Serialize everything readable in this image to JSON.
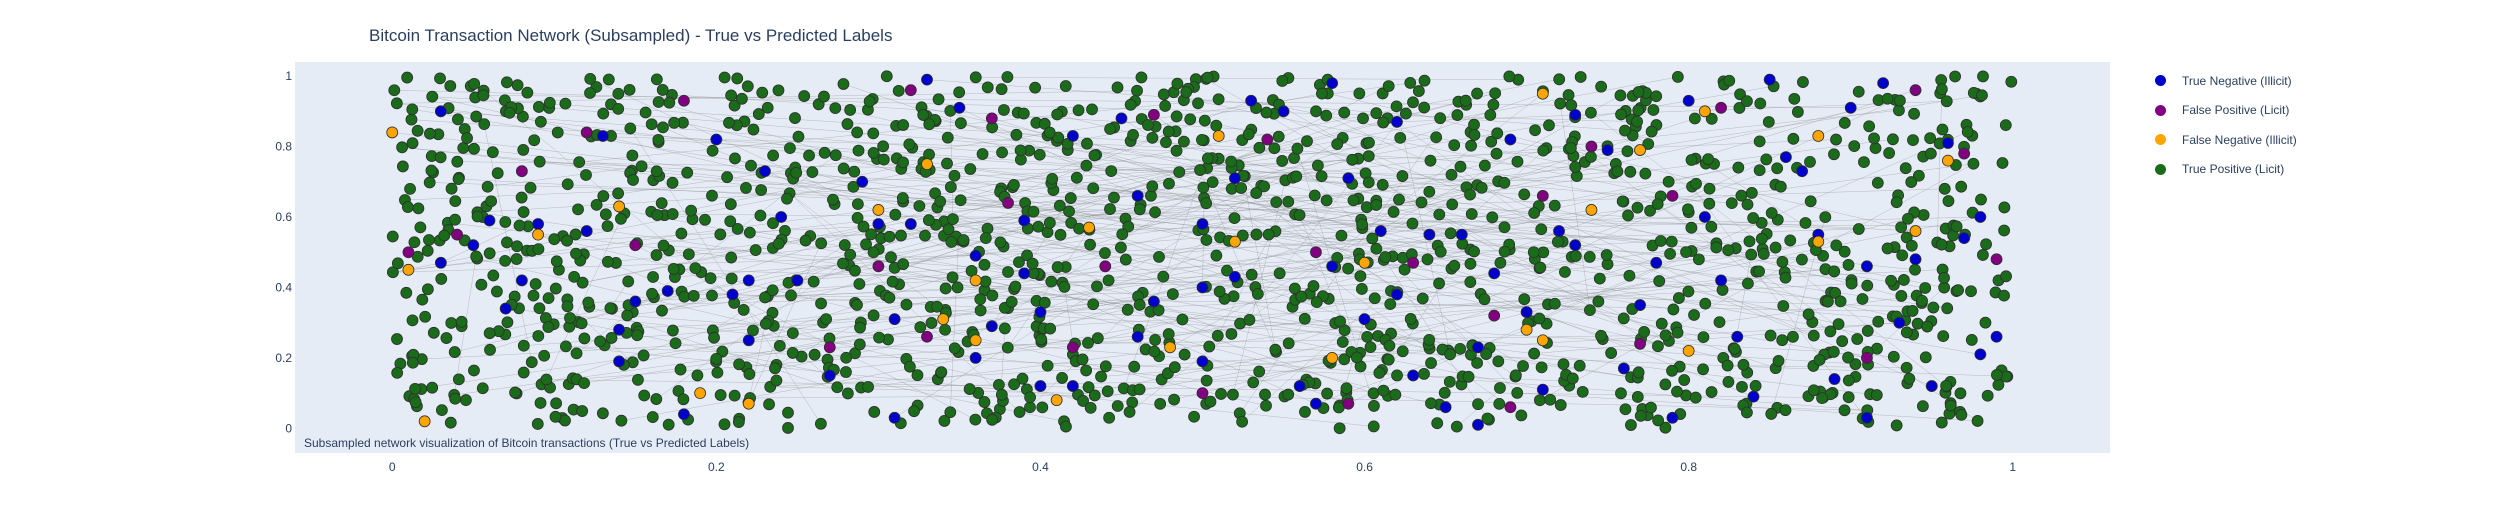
{
  "chart_data": {
    "type": "scatter",
    "title": "Bitcoin Transaction Network (Subsampled) - True vs Predicted Labels",
    "annotation": "Subsampled network visualization of Bitcoin transactions (True vs Predicted Labels)",
    "xlabel": "",
    "ylabel": "",
    "xlim": [
      -0.06,
      1.06
    ],
    "ylim": [
      -0.07,
      1.04
    ],
    "x_ticks": [
      0,
      0.2,
      0.4,
      0.6,
      0.8,
      1
    ],
    "x_tick_labels": [
      "0",
      "0.2",
      "0.4",
      "0.6",
      "0.8",
      "1"
    ],
    "y_ticks": [
      0,
      0.2,
      0.4,
      0.6,
      0.8,
      1
    ],
    "y_tick_labels": [
      "0",
      "0.2",
      "0.4",
      "0.6",
      "0.8",
      "1"
    ],
    "grid": false,
    "legend_position": "top-right",
    "colors": {
      "plot_background": "#e5ecf6",
      "edges": "#888888",
      "marker_outline": "#2f2f2f"
    },
    "series": [
      {
        "name": "True Negative (Illicit)",
        "color": "#0000cd",
        "points": [
          [
            0.03,
            0.47
          ],
          [
            0.03,
            0.9
          ],
          [
            0.06,
            0.59
          ],
          [
            0.05,
            0.52
          ],
          [
            0.07,
            0.34
          ],
          [
            0.08,
            0.42
          ],
          [
            0.09,
            0.58
          ],
          [
            0.12,
            0.56
          ],
          [
            0.13,
            0.83
          ],
          [
            0.14,
            0.28
          ],
          [
            0.14,
            0.19
          ],
          [
            0.15,
            0.36
          ],
          [
            0.17,
            0.39
          ],
          [
            0.18,
            0.04
          ],
          [
            0.2,
            0.82
          ],
          [
            0.21,
            0.38
          ],
          [
            0.22,
            0.42
          ],
          [
            0.22,
            0.25
          ],
          [
            0.23,
            0.73
          ],
          [
            0.24,
            0.6
          ],
          [
            0.25,
            0.42
          ],
          [
            0.27,
            0.15
          ],
          [
            0.29,
            0.7
          ],
          [
            0.3,
            0.58
          ],
          [
            0.31,
            0.31
          ],
          [
            0.31,
            0.03
          ],
          [
            0.32,
            0.58
          ],
          [
            0.33,
            0.99
          ],
          [
            0.35,
            0.91
          ],
          [
            0.36,
            0.49
          ],
          [
            0.36,
            0.2
          ],
          [
            0.37,
            0.29
          ],
          [
            0.39,
            0.59
          ],
          [
            0.39,
            0.44
          ],
          [
            0.4,
            0.33
          ],
          [
            0.4,
            0.12
          ],
          [
            0.42,
            0.83
          ],
          [
            0.42,
            0.12
          ],
          [
            0.45,
            0.88
          ],
          [
            0.46,
            0.66
          ],
          [
            0.46,
            0.26
          ],
          [
            0.47,
            0.36
          ],
          [
            0.5,
            0.58
          ],
          [
            0.5,
            0.4
          ],
          [
            0.5,
            0.19
          ],
          [
            0.52,
            0.71
          ],
          [
            0.52,
            0.43
          ],
          [
            0.53,
            0.93
          ],
          [
            0.55,
            0.9
          ],
          [
            0.56,
            0.12
          ],
          [
            0.57,
            0.07
          ],
          [
            0.58,
            0.98
          ],
          [
            0.58,
            0.46
          ],
          [
            0.59,
            0.71
          ],
          [
            0.6,
            0.31
          ],
          [
            0.61,
            0.56
          ],
          [
            0.62,
            0.87
          ],
          [
            0.62,
            0.38
          ],
          [
            0.63,
            0.15
          ],
          [
            0.64,
            0.55
          ],
          [
            0.65,
            0.06
          ],
          [
            0.66,
            0.55
          ],
          [
            0.67,
            0.23
          ],
          [
            0.67,
            0.01
          ],
          [
            0.68,
            0.44
          ],
          [
            0.69,
            0.82
          ],
          [
            0.7,
            0.33
          ],
          [
            0.71,
            0.11
          ],
          [
            0.72,
            0.56
          ],
          [
            0.73,
            0.89
          ],
          [
            0.73,
            0.52
          ],
          [
            0.75,
            0.79
          ],
          [
            0.76,
            0.17
          ],
          [
            0.77,
            0.35
          ],
          [
            0.78,
            0.47
          ],
          [
            0.79,
            0.03
          ],
          [
            0.8,
            0.93
          ],
          [
            0.81,
            0.6
          ],
          [
            0.82,
            0.42
          ],
          [
            0.83,
            0.26
          ],
          [
            0.84,
            0.09
          ],
          [
            0.85,
            0.99
          ],
          [
            0.86,
            0.77
          ],
          [
            0.87,
            0.73
          ],
          [
            0.88,
            0.55
          ],
          [
            0.89,
            0.14
          ],
          [
            0.9,
            0.91
          ],
          [
            0.91,
            0.46
          ],
          [
            0.91,
            0.03
          ],
          [
            0.92,
            0.98
          ],
          [
            0.93,
            0.3
          ],
          [
            0.94,
            0.48
          ],
          [
            0.95,
            0.12
          ],
          [
            0.96,
            0.81
          ],
          [
            0.97,
            0.54
          ],
          [
            0.98,
            0.6
          ],
          [
            0.98,
            0.21
          ],
          [
            0.99,
            0.26
          ]
        ]
      },
      {
        "name": "False Positive (Licit)",
        "color": "#800080",
        "points": [
          [
            0.01,
            0.5
          ],
          [
            0.04,
            0.55
          ],
          [
            0.08,
            0.73
          ],
          [
            0.12,
            0.84
          ],
          [
            0.15,
            0.52
          ],
          [
            0.18,
            0.93
          ],
          [
            0.27,
            0.23
          ],
          [
            0.3,
            0.46
          ],
          [
            0.32,
            0.96
          ],
          [
            0.33,
            0.26
          ],
          [
            0.37,
            0.88
          ],
          [
            0.38,
            0.64
          ],
          [
            0.42,
            0.23
          ],
          [
            0.44,
            0.46
          ],
          [
            0.47,
            0.89
          ],
          [
            0.5,
            0.1
          ],
          [
            0.54,
            0.82
          ],
          [
            0.57,
            0.5
          ],
          [
            0.59,
            0.07
          ],
          [
            0.63,
            0.47
          ],
          [
            0.68,
            0.32
          ],
          [
            0.69,
            0.06
          ],
          [
            0.71,
            0.66
          ],
          [
            0.74,
            0.8
          ],
          [
            0.77,
            0.24
          ],
          [
            0.79,
            0.66
          ],
          [
            0.82,
            0.91
          ],
          [
            0.91,
            0.2
          ],
          [
            0.94,
            0.96
          ],
          [
            0.97,
            0.78
          ],
          [
            0.99,
            0.48
          ]
        ]
      },
      {
        "name": "False Negative (Illicit)",
        "color": "#ffa500",
        "points": [
          [
            0.0,
            0.84
          ],
          [
            0.01,
            0.45
          ],
          [
            0.02,
            0.02
          ],
          [
            0.09,
            0.55
          ],
          [
            0.14,
            0.63
          ],
          [
            0.19,
            0.1
          ],
          [
            0.22,
            0.07
          ],
          [
            0.3,
            0.62
          ],
          [
            0.33,
            0.75
          ],
          [
            0.34,
            0.31
          ],
          [
            0.36,
            0.42
          ],
          [
            0.36,
            0.25
          ],
          [
            0.41,
            0.08
          ],
          [
            0.43,
            0.57
          ],
          [
            0.48,
            0.23
          ],
          [
            0.51,
            0.83
          ],
          [
            0.52,
            0.53
          ],
          [
            0.58,
            0.2
          ],
          [
            0.6,
            0.47
          ],
          [
            0.7,
            0.28
          ],
          [
            0.71,
            0.25
          ],
          [
            0.71,
            0.95
          ],
          [
            0.74,
            0.62
          ],
          [
            0.77,
            0.79
          ],
          [
            0.8,
            0.22
          ],
          [
            0.81,
            0.9
          ],
          [
            0.88,
            0.83
          ],
          [
            0.88,
            0.53
          ],
          [
            0.94,
            0.56
          ],
          [
            0.96,
            0.76
          ]
        ]
      },
      {
        "name": "True Positive (Licit)",
        "color": "#1a6b1a",
        "points": "dense field of approximately 1,500 green markers spread uniformly over x 0 to 1 and y 0 to 1"
      }
    ],
    "edges": "thin grey edges connecting node pairs across the network"
  }
}
